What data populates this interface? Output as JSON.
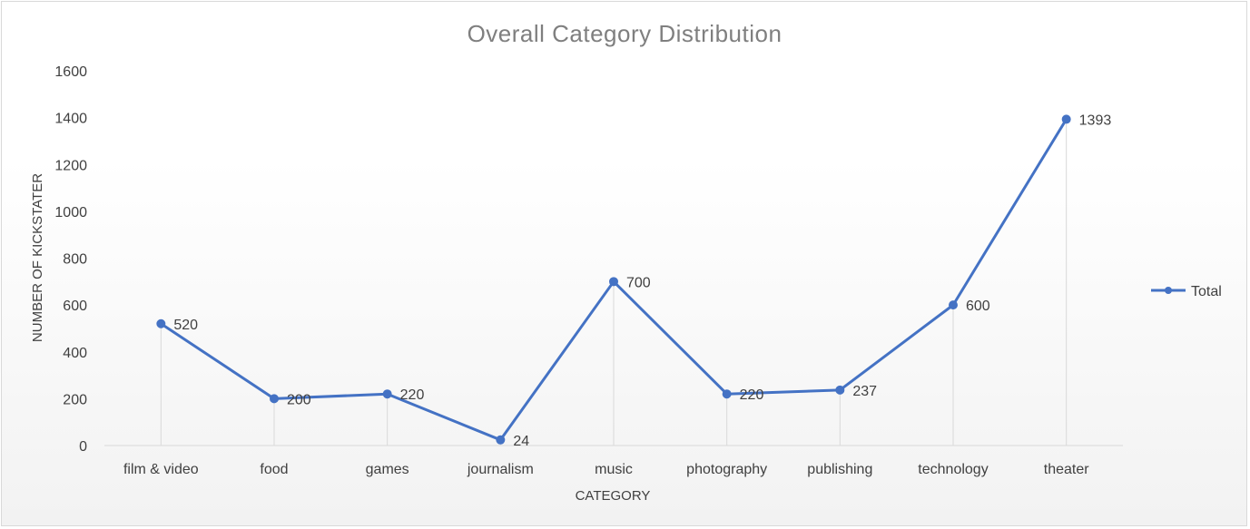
{
  "chart_data": {
    "type": "line",
    "title": "Overall  Category  Distribution",
    "xlabel": "CATEGORY",
    "ylabel": "NUMBER OF KICKSTATER",
    "categories": [
      "film & video",
      "food",
      "games",
      "journalism",
      "music",
      "photography",
      "publishing",
      "technology",
      "theater"
    ],
    "series": [
      {
        "name": "Total",
        "values": [
          520,
          200,
          220,
          24,
          700,
          220,
          237,
          600,
          1393
        ]
      }
    ],
    "ylim": [
      0,
      1600
    ],
    "yticks": [
      0,
      200,
      400,
      600,
      800,
      1000,
      1200,
      1400,
      1600
    ],
    "data_labels": [
      "520",
      "200",
      "220",
      "24",
      "700",
      "220",
      "237",
      "600",
      "1393"
    ],
    "drop_lines": true,
    "grid": false,
    "legend_position": "right",
    "colors": {
      "series": "#4472c4",
      "drop_line": "#d9d9d9",
      "axis": "#d9d9d9"
    }
  }
}
